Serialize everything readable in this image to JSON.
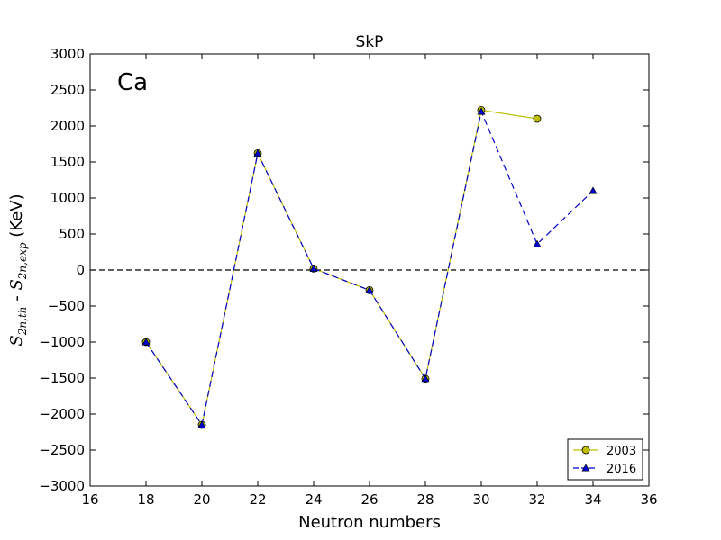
{
  "chart_data": {
    "type": "line",
    "title": "SkP",
    "xlabel": "Neutron numbers",
    "ylabel": {
      "main_a": "S",
      "sub_a": "2n,th",
      "dash": " - ",
      "main_b": "S",
      "sub_b": "2n,exp",
      "unit": " (KeV)"
    },
    "annotation": "Ca",
    "xlim": [
      16,
      36
    ],
    "ylim": [
      -3000,
      3000
    ],
    "xticks": [
      16,
      18,
      20,
      22,
      24,
      26,
      28,
      30,
      32,
      34,
      36
    ],
    "yticks": [
      -3000,
      -2500,
      -2000,
      -1500,
      -1000,
      -500,
      0,
      500,
      1000,
      1500,
      2000,
      2500,
      3000
    ],
    "reference_line": {
      "y": 0,
      "style": "dashed",
      "color": "#000000"
    },
    "legend_placement": "lower-right",
    "grid": false,
    "series": [
      {
        "name": "2003",
        "color": "#bfbf00",
        "marker": "circle",
        "line_style": "solid",
        "x": [
          18,
          20,
          22,
          24,
          26,
          28,
          30,
          32
        ],
        "y": [
          -1000,
          -2150,
          1620,
          20,
          -280,
          -1510,
          2220,
          2100
        ]
      },
      {
        "name": "2016",
        "color": "#0000cc",
        "marker": "triangle",
        "line_style": "dashed",
        "x": [
          18,
          20,
          22,
          24,
          26,
          28,
          30,
          32,
          34
        ],
        "y": [
          -1000,
          -2150,
          1620,
          20,
          -280,
          -1510,
          2200,
          360,
          1100
        ]
      }
    ]
  }
}
